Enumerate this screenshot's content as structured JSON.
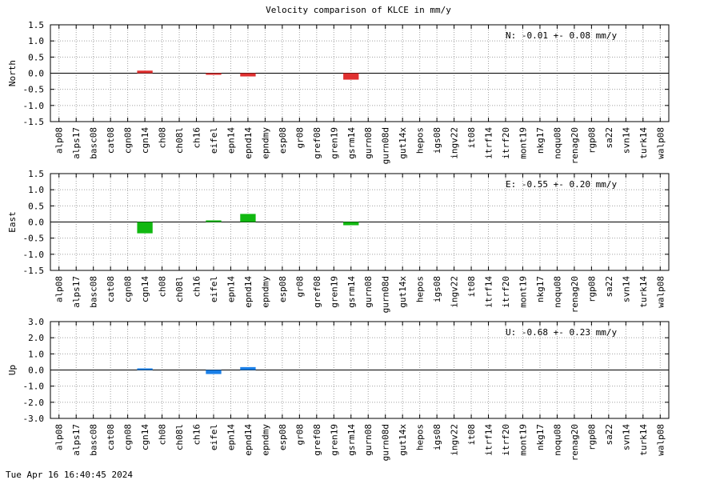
{
  "title": "Velocity comparison of KLCE in mm/y",
  "timestamp": "Tue Apr 16 16:40:45 2024",
  "chart_data": [
    {
      "type": "bar",
      "ylabel": "North",
      "color": "#e03030",
      "ylim": [
        -1.5,
        1.5
      ],
      "yticks": [
        "1.5",
        "1.0",
        "0.5",
        "0.0",
        "-0.5",
        "-1.0",
        "-1.5"
      ],
      "ytick_values": [
        1.5,
        1.0,
        0.5,
        0.0,
        -0.5,
        -1.0,
        -1.5
      ],
      "annotation": "N:  -0.01 +-  0.08 mm/y",
      "grid": true,
      "values": [
        null,
        null,
        null,
        null,
        null,
        0.08,
        null,
        null,
        null,
        -0.03,
        null,
        -0.1,
        null,
        null,
        null,
        null,
        null,
        -0.2,
        null,
        null,
        null,
        null,
        null,
        null,
        null,
        null,
        null,
        null,
        null,
        null,
        null,
        null,
        null,
        null,
        null,
        null
      ]
    },
    {
      "type": "bar",
      "ylabel": "East",
      "color": "#10b810",
      "ylim": [
        -1.5,
        1.5
      ],
      "yticks": [
        "1.5",
        "1.0",
        "0.5",
        "0.0",
        "-0.5",
        "-1.0",
        "-1.5"
      ],
      "ytick_values": [
        1.5,
        1.0,
        0.5,
        0.0,
        -0.5,
        -1.0,
        -1.5
      ],
      "annotation": "E:  -0.55 +-  0.20 mm/y",
      "grid": true,
      "values": [
        null,
        null,
        null,
        null,
        null,
        -0.35,
        null,
        null,
        null,
        0.05,
        null,
        0.25,
        null,
        null,
        null,
        null,
        null,
        -0.1,
        null,
        null,
        null,
        null,
        null,
        null,
        null,
        null,
        null,
        null,
        null,
        null,
        null,
        null,
        null,
        null,
        null,
        null
      ]
    },
    {
      "type": "bar",
      "ylabel": "Up",
      "color": "#1a80e8",
      "ylim": [
        -3.0,
        3.0
      ],
      "yticks": [
        "3.0",
        "2.0",
        "1.0",
        "0.0",
        "-1.0",
        "-2.0",
        "-3.0"
      ],
      "ytick_values": [
        3.0,
        2.0,
        1.0,
        0.0,
        -1.0,
        -2.0,
        -3.0
      ],
      "annotation": "U:  -0.68 +-  0.23 mm/y",
      "grid": true,
      "values": [
        null,
        null,
        null,
        null,
        null,
        0.05,
        null,
        null,
        null,
        -0.25,
        null,
        0.18,
        null,
        null,
        null,
        null,
        null,
        null,
        null,
        null,
        null,
        null,
        null,
        null,
        null,
        null,
        null,
        null,
        null,
        null,
        null,
        null,
        null,
        null,
        null,
        null
      ]
    }
  ],
  "categories": [
    "alp08",
    "alps17",
    "basc08",
    "cat08",
    "cgn08",
    "cgn14",
    "ch08",
    "ch08l",
    "ch16",
    "eifel",
    "epn14",
    "epnd14",
    "epndmy",
    "esp08",
    "gr08",
    "gref08",
    "gren19",
    "gsrm14",
    "gurn08",
    "gurn08d",
    "gut14x",
    "hepos",
    "igs08",
    "ingv22",
    "it08",
    "itrf14",
    "itrf20",
    "mont19",
    "nkg17",
    "noqu08",
    "renag20",
    "rgp08",
    "sa22",
    "svn14",
    "turk14",
    "walp08"
  ]
}
